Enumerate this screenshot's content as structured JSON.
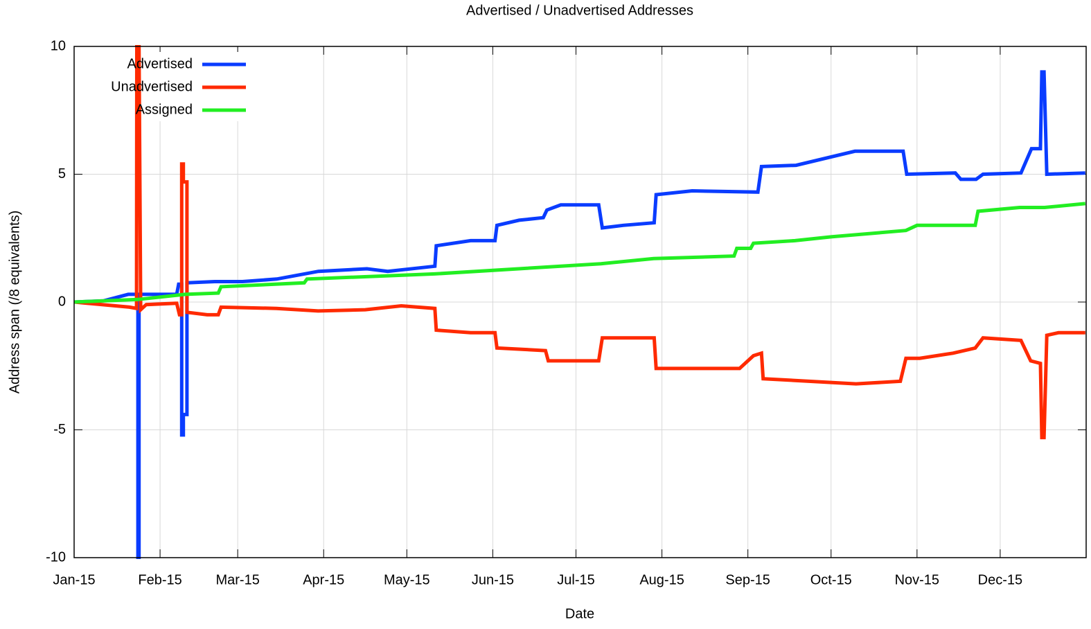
{
  "chart_data": {
    "type": "line",
    "title": "Advertised / Unadvertised Addresses",
    "xlabel": "Date",
    "ylabel": "Address span (/8 equivalents)",
    "xlim": [
      0,
      365
    ],
    "ylim": [
      -10,
      10
    ],
    "xticks": [
      {
        "value": 0,
        "label": "Jan-15"
      },
      {
        "value": 31,
        "label": "Feb-15"
      },
      {
        "value": 59,
        "label": "Mar-15"
      },
      {
        "value": 90,
        "label": "Apr-15"
      },
      {
        "value": 120,
        "label": "May-15"
      },
      {
        "value": 151,
        "label": "Jun-15"
      },
      {
        "value": 181,
        "label": "Jul-15"
      },
      {
        "value": 212,
        "label": "Aug-15"
      },
      {
        "value": 243,
        "label": "Sep-15"
      },
      {
        "value": 273,
        "label": "Oct-15"
      },
      {
        "value": 304,
        "label": "Nov-15"
      },
      {
        "value": 334,
        "label": "Dec-15"
      }
    ],
    "yticks": [
      -10,
      -5,
      0,
      5,
      10
    ],
    "grid": true,
    "legend": "upper left",
    "series": [
      {
        "name": "Advertised",
        "color": "#0a3cff",
        "x": [
          0,
          10.7,
          19.5,
          23,
          23,
          23.4,
          23.4,
          37,
          37.7,
          38.8,
          38.8,
          39.4,
          39.4,
          40.7,
          40.7,
          50.7,
          60.7,
          73.1,
          88.1,
          105.6,
          113.1,
          130.1,
          130.6,
          143,
          151.8,
          152.5,
          160.5,
          169.2,
          170.5,
          175.5,
          189.2,
          190.5,
          198,
          209.2,
          209.9,
          222.9,
          246.6,
          247.9,
          260.4,
          281.6,
          299,
          300.3,
          317.8,
          319.8,
          325.3,
          327.8,
          341.5,
          345.3,
          348.5,
          349,
          349.8,
          350.8,
          364.7
        ],
        "values": [
          0,
          0.05,
          0.3,
          0.3,
          -10,
          -10,
          0.3,
          0.3,
          0.7,
          0.7,
          -5.2,
          -5.2,
          -4.4,
          -4.4,
          0.75,
          0.8,
          0.8,
          0.9,
          1.2,
          1.3,
          1.2,
          1.4,
          2.2,
          2.4,
          2.4,
          3.0,
          3.2,
          3.3,
          3.6,
          3.8,
          3.8,
          2.9,
          3.0,
          3.1,
          4.2,
          4.35,
          4.3,
          5.3,
          5.35,
          5.9,
          5.9,
          5.0,
          5.05,
          4.8,
          4.8,
          5.0,
          5.05,
          6.0,
          6.0,
          9.0,
          9.0,
          5.0,
          5.05
        ]
      },
      {
        "name": "Unadvertised",
        "color": "#ff2a00",
        "x": [
          0,
          20,
          22.5,
          22.6,
          23.4,
          24,
          26,
          37,
          38,
          38.8,
          38.8,
          39.4,
          39.4,
          40.7,
          40.7,
          48,
          52,
          53,
          73,
          88,
          105,
          118,
          130.1,
          130.6,
          143,
          151.8,
          152.5,
          170,
          171,
          189.2,
          190.5,
          209.2,
          209.9,
          240,
          245,
          247.9,
          248.5,
          282,
          298,
          300,
          305,
          317,
          325,
          327.8,
          341.5,
          345,
          348.5,
          349,
          349.8,
          350.8,
          355,
          364.7
        ],
        "values": [
          0,
          -0.2,
          -0.25,
          10,
          10,
          -0.3,
          -0.1,
          -0.05,
          -0.5,
          -0.5,
          5.4,
          5.4,
          4.7,
          4.7,
          -0.4,
          -0.5,
          -0.5,
          -0.2,
          -0.25,
          -0.35,
          -0.3,
          -0.15,
          -0.25,
          -1.1,
          -1.2,
          -1.2,
          -1.8,
          -1.9,
          -2.3,
          -2.3,
          -1.4,
          -1.4,
          -2.6,
          -2.6,
          -2.1,
          -2.0,
          -3.0,
          -3.2,
          -3.1,
          -2.2,
          -2.2,
          -2.0,
          -1.8,
          -1.4,
          -1.5,
          -2.3,
          -2.4,
          -5.3,
          -5.3,
          -1.3,
          -1.2,
          -1.2
        ]
      },
      {
        "name": "Assigned",
        "color": "#22ee22",
        "x": [
          0,
          23,
          40,
          52,
          53,
          83,
          84,
          130,
          190,
          209,
          238,
          239,
          244,
          245,
          260,
          273,
          300,
          304,
          325,
          326,
          341,
          350,
          364.7
        ],
        "values": [
          0,
          0.1,
          0.3,
          0.35,
          0.6,
          0.75,
          0.9,
          1.1,
          1.5,
          1.7,
          1.8,
          2.1,
          2.1,
          2.3,
          2.4,
          2.55,
          2.8,
          3.0,
          3.0,
          3.55,
          3.7,
          3.7,
          3.85
        ]
      }
    ]
  }
}
